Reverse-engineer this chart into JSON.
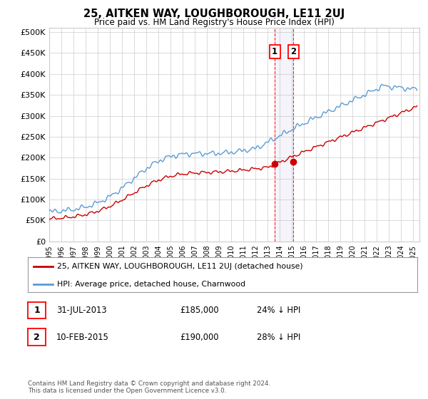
{
  "title": "25, AITKEN WAY, LOUGHBOROUGH, LE11 2UJ",
  "subtitle": "Price paid vs. HM Land Registry's House Price Index (HPI)",
  "ylim": [
    0,
    510000
  ],
  "yticks": [
    0,
    50000,
    100000,
    150000,
    200000,
    250000,
    300000,
    350000,
    400000,
    450000,
    500000
  ],
  "xlim_start": 1995.0,
  "xlim_end": 2025.5,
  "hpi_color": "#5b9bd5",
  "price_color": "#cc0000",
  "marker1_date": 2013.58,
  "marker2_date": 2015.12,
  "marker1_price": 185000,
  "marker2_price": 190000,
  "sale1_label": "1",
  "sale2_label": "2",
  "legend_line1": "25, AITKEN WAY, LOUGHBOROUGH, LE11 2UJ (detached house)",
  "legend_line2": "HPI: Average price, detached house, Charnwood",
  "table_row1": [
    "1",
    "31-JUL-2013",
    "£185,000",
    "24% ↓ HPI"
  ],
  "table_row2": [
    "2",
    "10-FEB-2015",
    "£190,000",
    "28% ↓ HPI"
  ],
  "footnote": "Contains HM Land Registry data © Crown copyright and database right 2024.\nThis data is licensed under the Open Government Licence v3.0.",
  "grid_color": "#cccccc",
  "background_color": "#ffffff"
}
